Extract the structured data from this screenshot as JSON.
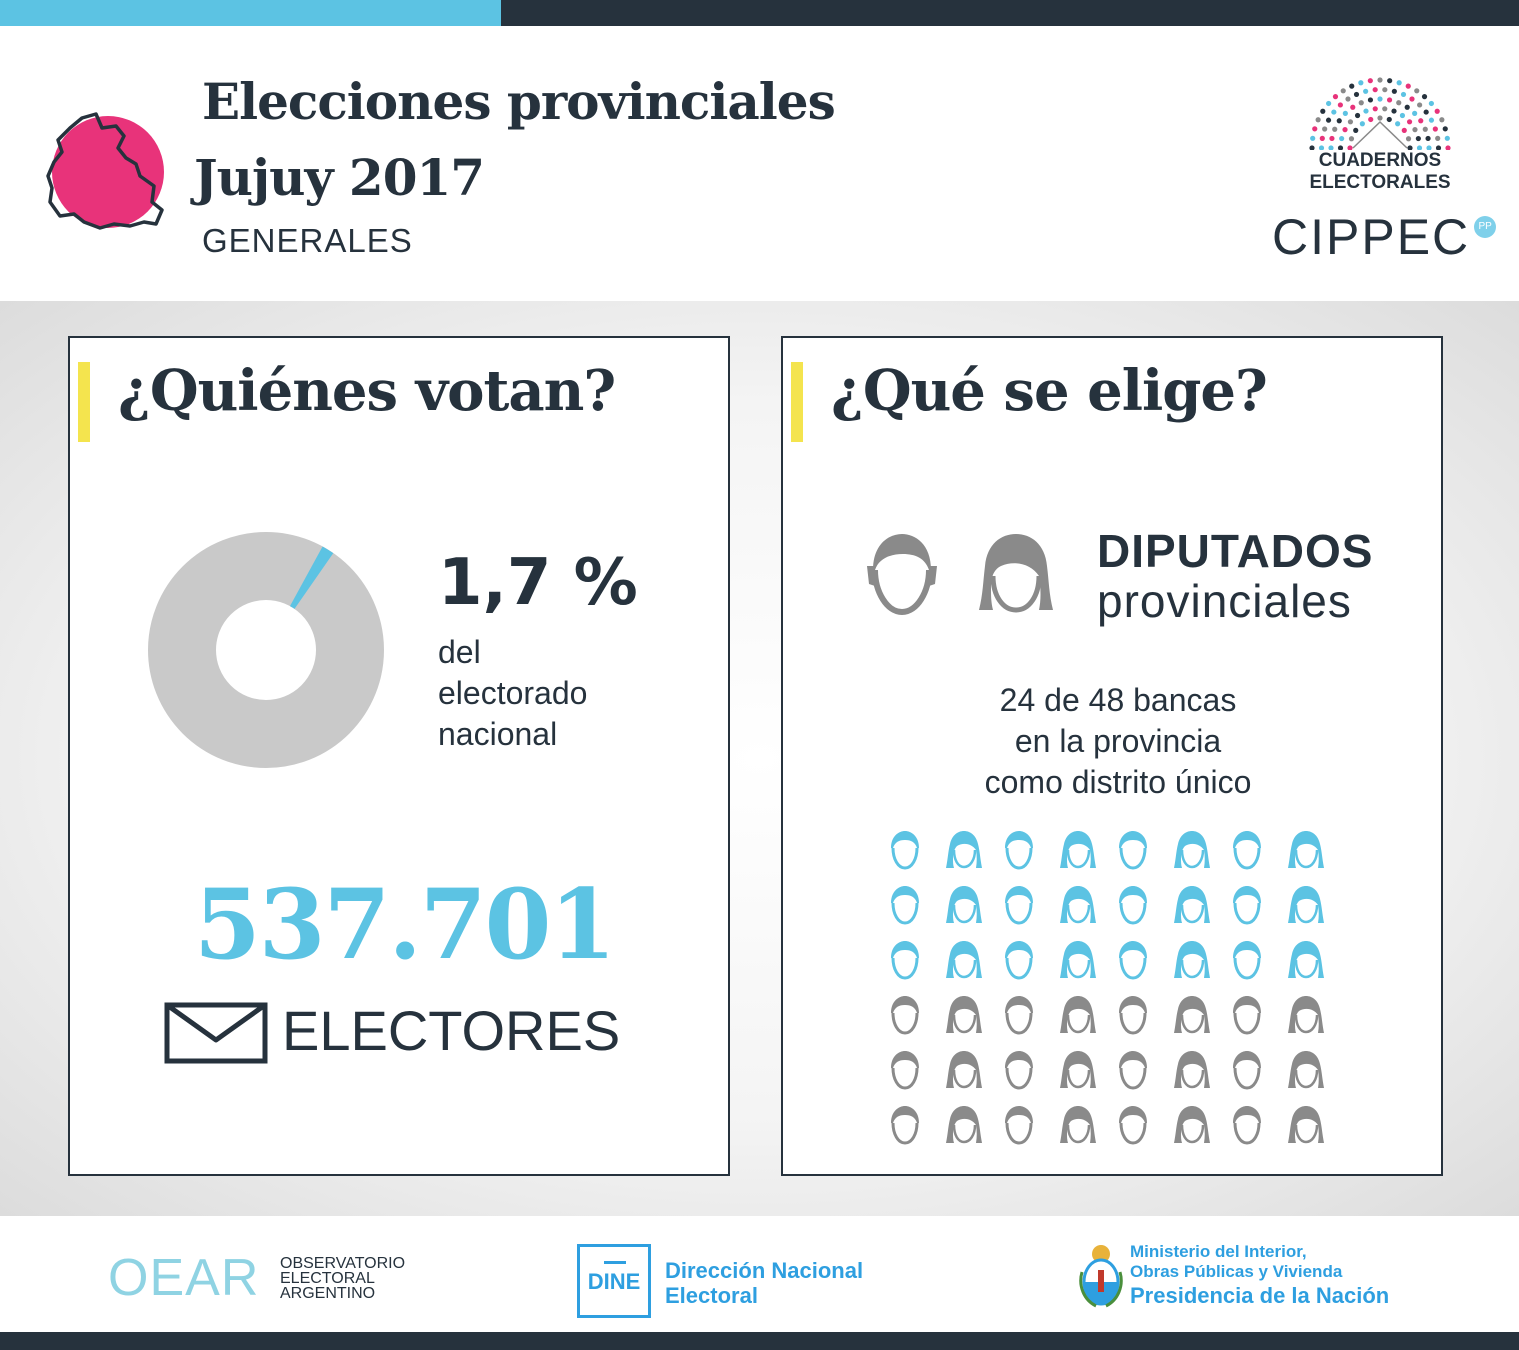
{
  "header": {
    "title_line1": "Elecciones provinciales",
    "title_line2": "Jujuy 2017",
    "subtitle": "GENERALES",
    "map_icon": "jujuy-province-map-icon",
    "accent_pink": "#e8337a"
  },
  "logos": {
    "cuadernos_line1": "CUADERNOS",
    "cuadernos_line2": "ELECTORALES",
    "cippec": "CIPPEC",
    "cippec_badge": "PP"
  },
  "left_panel": {
    "title": "¿Quiénes votan?",
    "percent": "1,7 %",
    "percent_value": 1.7,
    "percent_desc_1": "del",
    "percent_desc_2": "electorado",
    "percent_desc_3": "nacional",
    "electors_count": "537.701",
    "electors_label": "ELECTORES",
    "icon": "envelope-icon"
  },
  "right_panel": {
    "title": "¿Qué se elige?",
    "office_title": "DIPUTADOS",
    "office_sub": "provinciales",
    "seats_line1": "24 de 48 bancas",
    "seats_line2": "en la provincia",
    "seats_line3": "como distrito único",
    "seats_elected": 24,
    "seats_total": 48
  },
  "colors": {
    "dark": "#26323d",
    "light_blue": "#5cc3e3",
    "yellow": "#f4e44e",
    "gray": "#8a8a8a",
    "donut_gray": "#c9c9c9"
  },
  "footer": {
    "oear_logo": "OEAR",
    "oear_line1": "OBSERVATORIO",
    "oear_line2": "ELECTORAL",
    "oear_line3": "ARGENTINO",
    "dine_logo": "DINE",
    "dine_line1": "Dirección Nacional",
    "dine_line2": "Electoral",
    "min_line1": "Ministerio del Interior,",
    "min_line2": "Obras Públicas y Vivienda",
    "min_line3": "Presidencia de la Nación"
  }
}
